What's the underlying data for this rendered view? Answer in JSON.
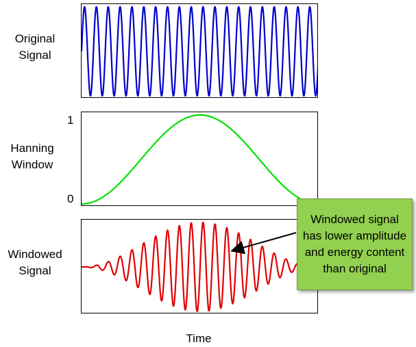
{
  "chart_data": [
    {
      "type": "line",
      "label_lines": [
        "Original",
        "Signal"
      ],
      "series": [
        {
          "color": "#0000cc",
          "kind": "sinusoid",
          "amplitude": 1.0,
          "cycles": 20
        }
      ],
      "ylim": [
        -1,
        1
      ]
    },
    {
      "type": "line",
      "label_lines": [
        "Hanning",
        "Window"
      ],
      "yticks": [
        "1",
        "0"
      ],
      "series": [
        {
          "color": "#00e000",
          "kind": "hanning"
        }
      ],
      "ylim": [
        0,
        1
      ]
    },
    {
      "type": "line",
      "label_lines": [
        "Windowed",
        "Signal"
      ],
      "series": [
        {
          "color": "#e00000",
          "kind": "windowed_sinusoid",
          "amplitude": 1.0,
          "cycles": 20
        }
      ],
      "ylim": [
        -1,
        1
      ]
    }
  ],
  "xlabel": "Time",
  "callout": {
    "text": "Windowed signal has lower amplitude and energy content than original",
    "color": "#92d050"
  }
}
